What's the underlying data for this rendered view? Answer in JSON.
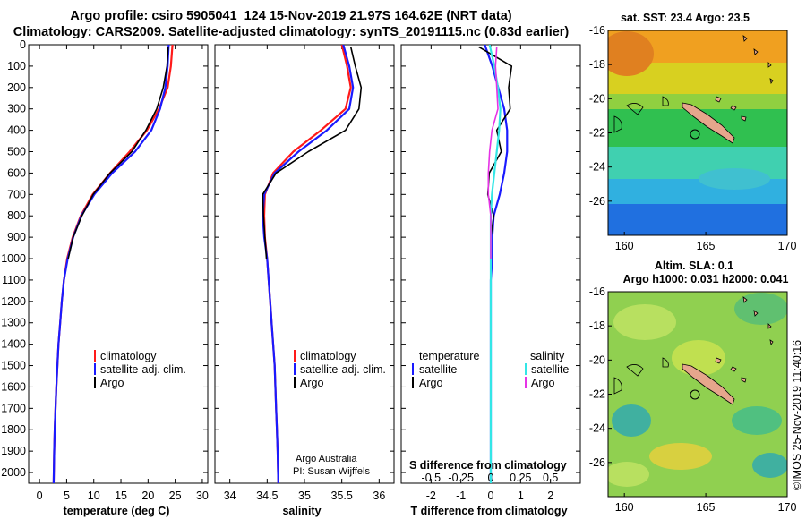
{
  "header": {
    "title_line1": "Argo profile: csiro 5905041_124 15-Nov-2019 21.97S 164.62E (NRT data)",
    "title_line2": "Climatology: CARS2009. Satellite-adjusted climatology: synTS_20191115.nc (0.83d earlier)"
  },
  "credit": {
    "line1": "Argo Australia",
    "line2": "PI: Susan Wijffels",
    "imos": "©IMOS 25-Nov-2019 11:40:16"
  },
  "colors": {
    "climatology": "#ff1a1a",
    "satellite": "#1a1aff",
    "argo": "#000000",
    "s_satellite": "#33e6e6",
    "s_argo": "#e633e6",
    "coast_fill": "#e6a68c"
  },
  "chart_data": [
    {
      "id": "temperature",
      "type": "line",
      "xlabel": "temperature (deg C)",
      "ylabel": "",
      "xlim": [
        -2,
        31
      ],
      "ylim": [
        2050,
        0
      ],
      "xticks": [
        "0",
        "5",
        "10",
        "15",
        "20",
        "25",
        "30"
      ],
      "yticks": [
        "0",
        "100",
        "200",
        "300",
        "400",
        "500",
        "600",
        "700",
        "800",
        "900",
        "1000",
        "1100",
        "1200",
        "1300",
        "1400",
        "1500",
        "1600",
        "1700",
        "1800",
        "1900",
        "2000"
      ],
      "legend": [
        "climatology",
        "satellite-adj. clim.",
        "Argo"
      ],
      "legend_position": "lower-right",
      "series": [
        {
          "name": "climatology",
          "color": "#ff1a1a",
          "x": [
            24.5,
            24.2,
            23.6,
            22.0,
            19.8,
            16.6,
            13.0,
            9.8,
            7.6,
            6.1,
            5.1,
            4.5,
            4.1,
            3.8,
            3.5,
            3.3,
            3.1,
            2.95,
            2.8,
            2.7,
            2.6
          ],
          "y": [
            0,
            100,
            200,
            300,
            400,
            500,
            600,
            700,
            800,
            900,
            1000,
            1100,
            1200,
            1300,
            1400,
            1500,
            1600,
            1700,
            1800,
            1900,
            2050
          ]
        },
        {
          "name": "satellite-adj. clim.",
          "color": "#1a1aff",
          "x": [
            23.8,
            23.6,
            23.2,
            22.2,
            20.6,
            17.6,
            13.4,
            10.1,
            7.7,
            6.2,
            5.2,
            4.5,
            4.1,
            3.8,
            3.5,
            3.3,
            3.1,
            2.95,
            2.8,
            2.7,
            2.6
          ],
          "y": [
            0,
            100,
            200,
            300,
            400,
            500,
            600,
            700,
            800,
            900,
            1000,
            1100,
            1200,
            1300,
            1400,
            1500,
            1600,
            1700,
            1800,
            1900,
            2050
          ]
        },
        {
          "name": "Argo",
          "color": "#000000",
          "x": [
            23.7,
            23.5,
            22.8,
            21.6,
            19.6,
            17.0,
            13.0,
            9.9,
            7.8,
            6.2,
            5.3
          ],
          "y": [
            10,
            100,
            200,
            300,
            400,
            500,
            600,
            700,
            800,
            900,
            1000
          ]
        }
      ]
    },
    {
      "id": "salinity",
      "type": "line",
      "xlabel": "salinity",
      "ylabel": "",
      "xlim": [
        33.8,
        36.2
      ],
      "ylim": [
        2050,
        0
      ],
      "xticks": [
        "34",
        "34.5",
        "35",
        "35.5",
        "36"
      ],
      "legend": [
        "climatology",
        "satellite-adj. clim.",
        "Argo"
      ],
      "legend_position": "lower-right",
      "series": [
        {
          "name": "climatology",
          "color": "#ff1a1a",
          "x": [
            35.5,
            35.57,
            35.62,
            35.55,
            35.22,
            34.85,
            34.58,
            34.47,
            34.46,
            34.47,
            34.5,
            34.52,
            34.54,
            34.56,
            34.58,
            34.6,
            34.61,
            34.62,
            34.63,
            34.64,
            34.65
          ],
          "y": [
            0,
            100,
            200,
            300,
            400,
            500,
            600,
            700,
            800,
            900,
            1000,
            1100,
            1200,
            1300,
            1400,
            1500,
            1600,
            1700,
            1800,
            1900,
            2050
          ]
        },
        {
          "name": "satellite-adj. clim.",
          "color": "#1a1aff",
          "x": [
            35.52,
            35.6,
            35.65,
            35.6,
            35.3,
            34.92,
            34.6,
            34.46,
            34.44,
            34.46,
            34.5,
            34.52,
            34.54,
            34.56,
            34.58,
            34.6,
            34.61,
            34.62,
            34.63,
            34.64,
            34.65
          ],
          "y": [
            0,
            100,
            200,
            300,
            400,
            500,
            600,
            700,
            800,
            900,
            1000,
            1100,
            1200,
            1300,
            1400,
            1500,
            1600,
            1700,
            1800,
            1900,
            2050
          ]
        },
        {
          "name": "Argo",
          "color": "#000000",
          "x": [
            35.62,
            35.68,
            35.76,
            35.73,
            35.55,
            35.05,
            34.62,
            34.44,
            34.45,
            34.47,
            34.49
          ],
          "y": [
            10,
            100,
            200,
            300,
            400,
            500,
            600,
            700,
            800,
            900,
            1000
          ]
        }
      ]
    },
    {
      "id": "difference",
      "type": "line",
      "xlabel": "T difference from climatology",
      "ylabel": "",
      "title_inside": "S difference from climatology",
      "xlim": [
        -3,
        3
      ],
      "ylim": [
        2050,
        0
      ],
      "xticks": [
        "-2",
        "-1",
        "0",
        "1",
        "2"
      ],
      "s_ticks": [
        "-0.5",
        "-0.25",
        "0",
        "0.25",
        "0.5"
      ],
      "legend_temperature": {
        "heading": "temperature",
        "items": [
          "satellite",
          "Argo"
        ]
      },
      "legend_salinity": {
        "heading": "salinity",
        "items": [
          "satellite",
          "Argo"
        ]
      },
      "series": [
        {
          "name": "T satellite",
          "color": "#1a1aff",
          "x": [
            -0.2,
            0.05,
            0.25,
            0.45,
            0.55,
            0.55,
            0.45,
            0.3,
            0.1,
            0.05,
            0.05,
            0.0,
            0.0,
            0.0,
            0.0,
            0.0,
            0.0,
            0.0,
            0.0,
            0.0,
            0.0
          ],
          "y": [
            0,
            100,
            200,
            300,
            400,
            500,
            600,
            700,
            800,
            900,
            1000,
            1100,
            1200,
            1300,
            1400,
            1500,
            1600,
            1700,
            1800,
            1900,
            2050
          ]
        },
        {
          "name": "T Argo",
          "color": "#000000",
          "x": [
            -0.4,
            0.7,
            0.6,
            0.65,
            0.2,
            0.35,
            -0.05,
            -0.1,
            0.1,
            0.0,
            0.0
          ],
          "y": [
            10,
            100,
            200,
            300,
            400,
            500,
            600,
            700,
            800,
            900,
            1000
          ]
        },
        {
          "name": "S satellite",
          "color": "#33e6e6",
          "x": [
            -0.01,
            0.03,
            0.06,
            0.08,
            0.07,
            0.05,
            0.03,
            0.01,
            0.0,
            0.0,
            0.0,
            0.0,
            0.0,
            0.0,
            0.0,
            0.0,
            0.0,
            0.0,
            0.0,
            0.0,
            0.0
          ],
          "y": [
            0,
            100,
            200,
            300,
            400,
            500,
            600,
            700,
            800,
            900,
            1000,
            1100,
            1200,
            1300,
            1400,
            1500,
            1600,
            1700,
            1800,
            1900,
            2050
          ]
        },
        {
          "name": "S Argo",
          "color": "#e633e6",
          "x": [
            0.05,
            0.04,
            0.05,
            0.06,
            0.01,
            -0.01,
            -0.02,
            -0.02,
            0.0,
            0.0,
            0.0
          ],
          "y": [
            10,
            100,
            200,
            300,
            400,
            500,
            600,
            700,
            800,
            900,
            1000
          ]
        }
      ]
    },
    {
      "id": "sst-map",
      "type": "heatmap",
      "title": "sat. SST: 23.4 Argo: 23.5",
      "xlim": [
        159,
        170
      ],
      "ylim": [
        -28,
        -16
      ],
      "xticks": [
        "160",
        "165",
        "170"
      ],
      "yticks": [
        "-16",
        "-18",
        "-20",
        "-22",
        "-24",
        "-26"
      ],
      "argo_position": {
        "lon": 164.62,
        "lat": -21.97
      }
    },
    {
      "id": "sla-map",
      "type": "heatmap",
      "title": "Altim. SLA: 0.1",
      "subtitle": "Argo h1000: 0.031 h2000: 0.041",
      "xlim": [
        159,
        170
      ],
      "ylim": [
        -28,
        -16
      ],
      "xticks": [
        "160",
        "165",
        "170"
      ],
      "yticks": [
        "-16",
        "-18",
        "-20",
        "-22",
        "-24",
        "-26"
      ],
      "argo_position": {
        "lon": 164.62,
        "lat": -21.97
      }
    }
  ]
}
